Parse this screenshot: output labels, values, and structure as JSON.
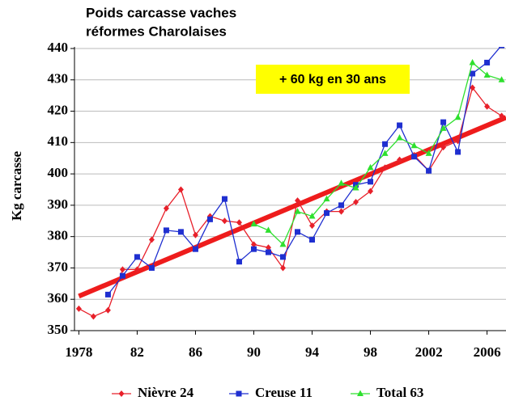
{
  "chart_data": {
    "type": "line",
    "title": [
      "Poids carcasse vaches",
      "réformes Charolaises"
    ],
    "annotation": "+ 60 kg en 30 ans",
    "y_label": "Kg carcasse",
    "x": [
      1978,
      1979,
      1980,
      1981,
      1982,
      1983,
      1984,
      1985,
      1986,
      1987,
      1988,
      1989,
      1990,
      1991,
      1992,
      1993,
      1994,
      1995,
      1996,
      1997,
      1998,
      1999,
      2000,
      2001,
      2002,
      2003,
      2004,
      2005,
      2006,
      2007
    ],
    "series": [
      {
        "name": "Nièvre 24",
        "color": "#e8202a",
        "marker": "diamond",
        "values": [
          357,
          354.5,
          356.5,
          369.5,
          369.5,
          379,
          389,
          395,
          380.5,
          386.5,
          385,
          384.5,
          377.5,
          376.5,
          370,
          391.5,
          383.5,
          388,
          388,
          391,
          394.5,
          402,
          404.5,
          406,
          401,
          408.5,
          410.5,
          427.5,
          421.5,
          418.5
        ]
      },
      {
        "name": "Creuse 11",
        "color": "#1f2fd0",
        "marker": "square",
        "values": [
          null,
          null,
          361.5,
          367.5,
          373.5,
          370,
          382,
          381.5,
          376,
          385.5,
          392,
          372,
          376,
          375,
          373.5,
          381.5,
          379,
          387.5,
          390,
          396.5,
          397.5,
          409.5,
          415.5,
          405.5,
          401,
          416.5,
          407,
          432,
          435.5,
          441
        ]
      },
      {
        "name": "Total 63",
        "color": "#2ee02e",
        "marker": "triangle",
        "values": [
          null,
          null,
          null,
          null,
          null,
          null,
          null,
          null,
          null,
          null,
          null,
          null,
          384,
          382,
          377.5,
          388,
          386.5,
          392,
          397,
          395.5,
          402,
          406.5,
          411.5,
          409,
          406.5,
          414.5,
          418,
          435.5,
          431.5,
          430
        ]
      }
    ],
    "trend": {
      "x": [
        1978,
        2007.3
      ],
      "values": [
        361,
        418
      ],
      "color": "#ee1c1c"
    },
    "xlim": [
      1977.7,
      2007.3
    ],
    "ylim": [
      350,
      440
    ],
    "xticks": [
      1978,
      {
        "value": 1982,
        "label": "82"
      },
      {
        "value": 1986,
        "label": "86"
      },
      {
        "value": 1990,
        "label": "90"
      },
      {
        "value": 1994,
        "label": "94"
      },
      {
        "value": 1998,
        "label": "98"
      },
      2002,
      2006
    ],
    "yticks": [
      350,
      360,
      370,
      380,
      390,
      400,
      410,
      420,
      430,
      440
    ],
    "grid": true
  }
}
